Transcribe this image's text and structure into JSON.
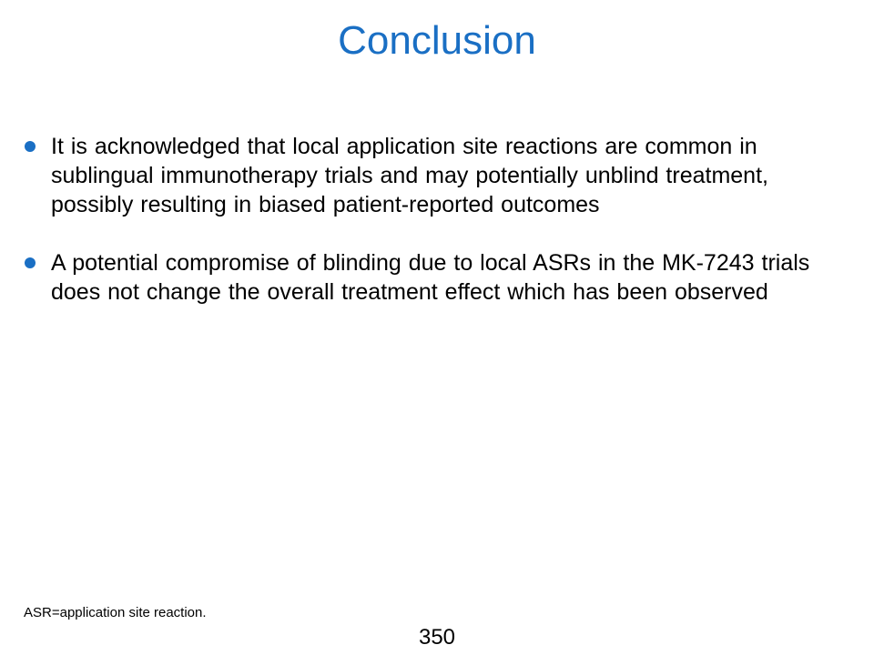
{
  "slide": {
    "title": "Conclusion",
    "bullets": [
      "It is acknowledged that local application site reactions are common in sublingual immunotherapy trials and may potentially unblind treatment, possibly resulting in biased patient-reported outcomes",
      "A potential compromise of blinding due to local ASRs in the MK-7243 trials does not change the overall treatment effect which has been observed"
    ],
    "footnote": "ASR=application site reaction.",
    "page_number": "350"
  },
  "colors": {
    "accent": "#1a6fc4",
    "text": "#000000",
    "background": "#ffffff"
  }
}
